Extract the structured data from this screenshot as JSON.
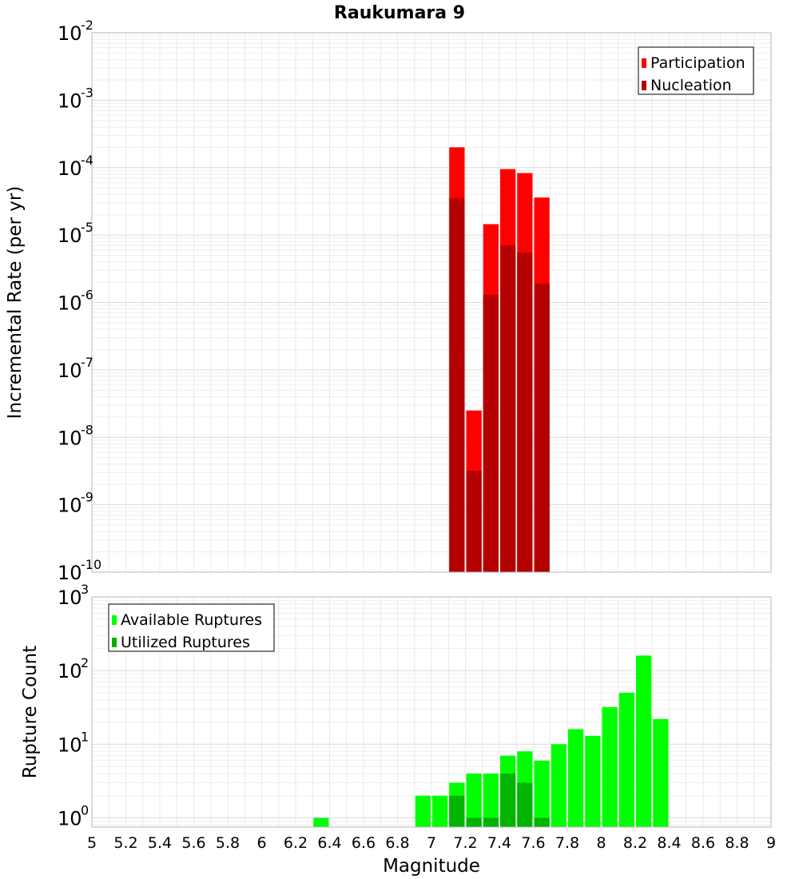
{
  "chart_data": [
    {
      "type": "bar",
      "title": "Raukumara 9",
      "xlabel": "",
      "ylabel": "Incremental Rate (per yr)",
      "yscale": "log",
      "xlim": [
        5,
        9
      ],
      "ylim": [
        1e-10,
        0.01
      ],
      "yticks": [
        {
          "base": "10",
          "exp": "-10"
        },
        {
          "base": "10",
          "exp": "-9"
        },
        {
          "base": "10",
          "exp": "-8"
        },
        {
          "base": "10",
          "exp": "-7"
        },
        {
          "base": "10",
          "exp": "-6"
        },
        {
          "base": "10",
          "exp": "-5"
        },
        {
          "base": "10",
          "exp": "-4"
        },
        {
          "base": "10",
          "exp": "-3"
        },
        {
          "base": "10",
          "exp": "-2"
        }
      ],
      "legend": "top-right",
      "grid": true,
      "series": [
        {
          "name": "Participation",
          "color": "#ff0000",
          "x": [
            7.15,
            7.25,
            7.35,
            7.45,
            7.55,
            7.65
          ],
          "values": [
            0.0002,
            2.5e-08,
            1.45e-05,
            9.5e-05,
            8.3e-05,
            3.6e-05
          ]
        },
        {
          "name": "Nucleation",
          "color": "#b40000",
          "x": [
            7.15,
            7.25,
            7.35,
            7.45,
            7.55,
            7.65
          ],
          "values": [
            3.5e-05,
            3.2e-09,
            1.3e-06,
            7e-06,
            5.5e-06,
            1.9e-06
          ]
        }
      ]
    },
    {
      "type": "bar",
      "title": "",
      "xlabel": "Magnitude",
      "ylabel": "Rupture Count",
      "yscale": "log",
      "xlim": [
        5,
        9
      ],
      "ylim": [
        0.75,
        1000
      ],
      "xticks": [
        "5",
        "5.2",
        "5.4",
        "5.6",
        "5.8",
        "6",
        "6.2",
        "6.4",
        "6.6",
        "6.8",
        "7",
        "7.2",
        "7.4",
        "7.6",
        "7.8",
        "8",
        "8.2",
        "8.4",
        "8.6",
        "8.8",
        "9"
      ],
      "yticks": [
        {
          "base": "10",
          "exp": "0"
        },
        {
          "base": "10",
          "exp": "1"
        },
        {
          "base": "10",
          "exp": "2"
        },
        {
          "base": "10",
          "exp": "3"
        }
      ],
      "legend": "top-left",
      "grid": true,
      "series": [
        {
          "name": "Available Ruptures",
          "color": "#00ff00",
          "x": [
            6.35,
            6.95,
            7.05,
            7.15,
            7.25,
            7.35,
            7.45,
            7.55,
            7.65,
            7.75,
            7.85,
            7.95,
            8.05,
            8.15,
            8.25,
            8.35
          ],
          "values": [
            1,
            2,
            2,
            3,
            4,
            4,
            7,
            8,
            6,
            10,
            16,
            13,
            32,
            50,
            160,
            22
          ]
        },
        {
          "name": "Utilized Ruptures",
          "color": "#00b400",
          "x": [
            7.15,
            7.25,
            7.35,
            7.45,
            7.55,
            7.65
          ],
          "values": [
            2,
            1,
            1,
            4,
            3,
            1
          ]
        }
      ]
    }
  ]
}
